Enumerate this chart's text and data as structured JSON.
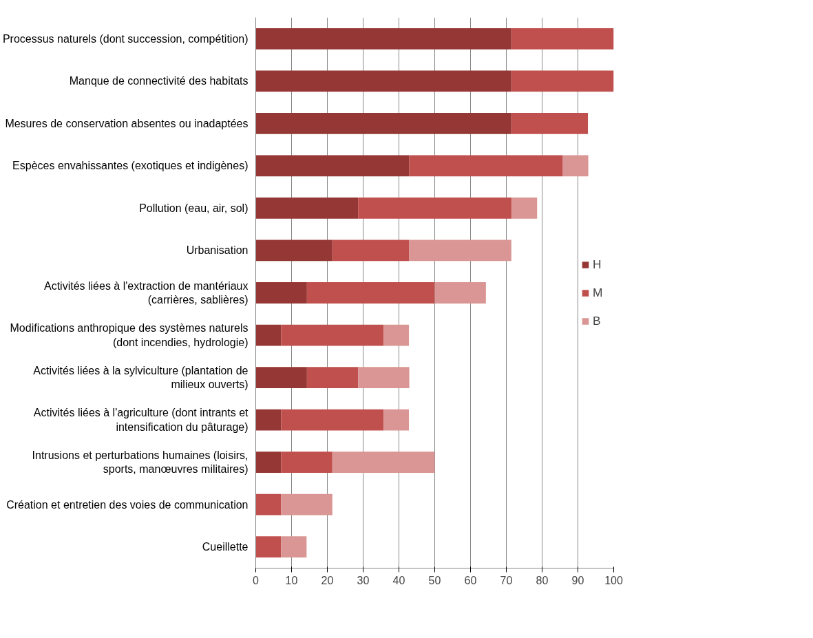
{
  "chart_data": {
    "type": "bar",
    "orientation": "horizontal",
    "stacked": true,
    "categories": [
      "Processus naturels (dont succession, compétition)",
      "Manque de connectivité des habitats",
      "Mesures de conservation absentes ou inadaptées",
      "Espèces envahissantes (exotiques et indigènes)",
      "Pollution (eau, air, sol)",
      "Urbanisation",
      "Activités liées à l'extraction de mantériaux (carrières, sablières)",
      "Modifications anthropique des systèmes naturels (dont incendies, hydrologie)",
      "Activités liées à la sylviculture (plantation de milieux ouverts)",
      "Activités liées à l'agriculture (dont intrants et intensification du pâturage)",
      "Intrusions et perturbations humaines (loisirs, sports, manœuvres militaires)",
      "Création et entretien des voies de communication",
      "Cueillette"
    ],
    "series": [
      {
        "name": "H",
        "color": "#953735",
        "values": [
          71.4,
          71.4,
          71.4,
          42.9,
          28.6,
          21.4,
          14.3,
          7.1,
          14.3,
          7.1,
          7.1,
          0,
          0
        ]
      },
      {
        "name": "M",
        "color": "#c0504d",
        "values": [
          28.6,
          28.6,
          21.4,
          42.9,
          42.9,
          21.4,
          35.7,
          28.6,
          14.3,
          28.6,
          14.3,
          7.1,
          7.1
        ]
      },
      {
        "name": "B",
        "color": "#d99694",
        "values": [
          0,
          0,
          0,
          7.1,
          7.1,
          28.6,
          14.3,
          7.1,
          14.3,
          7.1,
          28.6,
          14.3,
          7.1
        ]
      }
    ],
    "xlim": [
      0,
      100
    ],
    "xticks": [
      0,
      10,
      20,
      30,
      40,
      50,
      60,
      70,
      80,
      90,
      100
    ],
    "grid": "x",
    "legend": "right"
  }
}
